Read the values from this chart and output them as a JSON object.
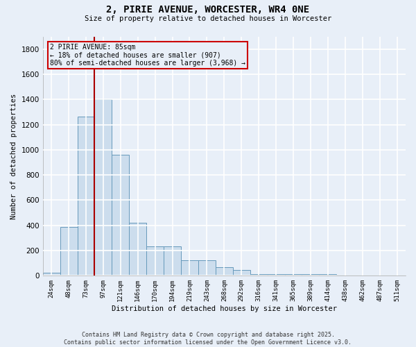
{
  "title": "2, PIRIE AVENUE, WORCESTER, WR4 0NE",
  "subtitle": "Size of property relative to detached houses in Worcester",
  "xlabel": "Distribution of detached houses by size in Worcester",
  "ylabel": "Number of detached properties",
  "bar_labels": [
    "24sqm",
    "48sqm",
    "73sqm",
    "97sqm",
    "121sqm",
    "146sqm",
    "170sqm",
    "194sqm",
    "219sqm",
    "243sqm",
    "268sqm",
    "292sqm",
    "316sqm",
    "341sqm",
    "365sqm",
    "389sqm",
    "414sqm",
    "438sqm",
    "462sqm",
    "487sqm",
    "511sqm"
  ],
  "bar_values": [
    25,
    390,
    1265,
    1400,
    960,
    420,
    235,
    235,
    125,
    125,
    70,
    45,
    15,
    15,
    12,
    12,
    12,
    10,
    10,
    10,
    10
  ],
  "bar_color": "#ccdded",
  "bar_edge_color": "#6699bb",
  "bg_color": "#e8eff8",
  "grid_color": "#ffffff",
  "vline_color": "#aa0000",
  "annotation_text": "2 PIRIE AVENUE: 85sqm\n← 18% of detached houses are smaller (907)\n80% of semi-detached houses are larger (3,968) →",
  "annotation_box_color": "#cc0000",
  "footer_line1": "Contains HM Land Registry data © Crown copyright and database right 2025.",
  "footer_line2": "Contains public sector information licensed under the Open Government Licence v3.0.",
  "ylim": [
    0,
    1900
  ],
  "yticks": [
    0,
    200,
    400,
    600,
    800,
    1000,
    1200,
    1400,
    1600,
    1800
  ]
}
